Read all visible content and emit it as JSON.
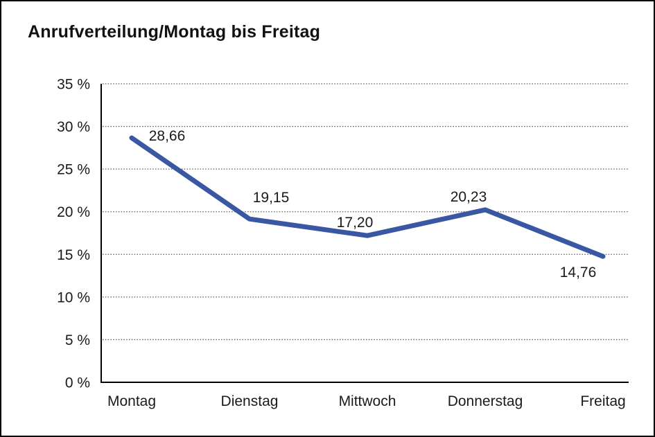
{
  "window": {
    "background": "#ffffff",
    "border_color": "#000000"
  },
  "chart_data": {
    "type": "line",
    "title": "Anrufverteilung/Montag bis Freitag",
    "categories": [
      "Montag",
      "Dienstag",
      "Mittwoch",
      "Donnerstag",
      "Freitag"
    ],
    "series": [
      {
        "name": "Anrufverteilung",
        "values": [
          28.66,
          19.15,
          17.2,
          20.23,
          14.76
        ]
      }
    ],
    "point_labels": [
      "28,66",
      "19,15",
      "17,20",
      "20,23",
      "14,76"
    ],
    "xlabel": "",
    "ylabel": "",
    "y_axis": {
      "min": 0,
      "max": 35,
      "step": 5,
      "unit": "%",
      "tick_labels": [
        "0 %",
        "5 %",
        "10 %",
        "15 %",
        "20 %",
        "25 %",
        "30 %",
        "35 %"
      ]
    },
    "grid": "dotted-horizontal",
    "legend": "none",
    "colors": {
      "line": "#3A57A3",
      "axis": "#000000",
      "gridline": "#595959",
      "text": "#1a1a1a"
    }
  }
}
